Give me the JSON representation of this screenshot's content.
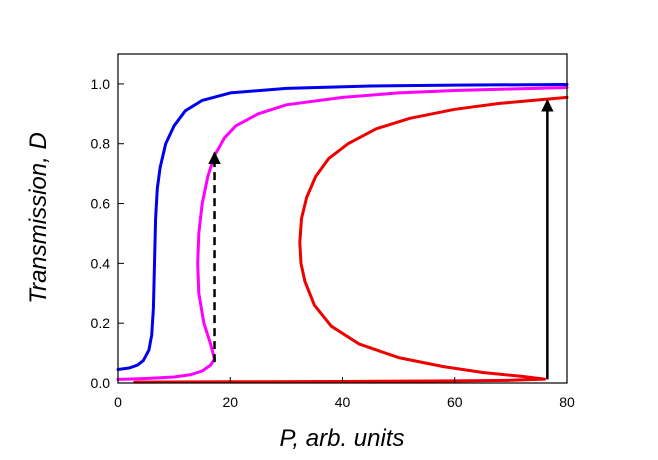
{
  "chart_data": {
    "type": "line",
    "xlabel": "P, arb. units",
    "ylabel": "Transmission, D",
    "xlim": [
      0,
      80
    ],
    "ylim": [
      0,
      1.1
    ],
    "x_ticks": [
      0,
      20,
      40,
      60,
      80
    ],
    "x_tick_labels": [
      "0",
      "20",
      "40",
      "60",
      "80"
    ],
    "y_ticks": [
      0.0,
      0.2,
      0.4,
      0.6,
      0.8,
      1.0
    ],
    "y_tick_labels": [
      "0.0",
      "0.2",
      "0.4",
      "0.6",
      "0.8",
      "1.0"
    ],
    "grid": false,
    "series": [
      {
        "color": "#0000ee",
        "style": "solid",
        "points": [
          [
            0,
            0.045
          ],
          [
            2,
            0.05
          ],
          [
            3.5,
            0.06
          ],
          [
            4.5,
            0.075
          ],
          [
            5.5,
            0.11
          ],
          [
            6,
            0.16
          ],
          [
            6.3,
            0.25
          ],
          [
            6.5,
            0.4
          ],
          [
            6.7,
            0.55
          ],
          [
            7,
            0.65
          ],
          [
            7.5,
            0.72
          ],
          [
            8.5,
            0.8
          ],
          [
            10,
            0.86
          ],
          [
            12,
            0.91
          ],
          [
            15,
            0.945
          ],
          [
            20,
            0.97
          ],
          [
            30,
            0.985
          ],
          [
            45,
            0.993
          ],
          [
            60,
            0.996
          ],
          [
            80,
            0.998
          ]
        ]
      },
      {
        "color": "#ff00ff",
        "style": "solid",
        "points": [
          [
            0,
            0.012
          ],
          [
            5,
            0.015
          ],
          [
            10,
            0.02
          ],
          [
            13,
            0.028
          ],
          [
            15,
            0.04
          ],
          [
            16.5,
            0.06
          ],
          [
            17.2,
            0.08
          ],
          [
            16.5,
            0.13
          ],
          [
            15.3,
            0.2
          ],
          [
            14.4,
            0.3
          ],
          [
            14.2,
            0.4
          ],
          [
            14.4,
            0.5
          ],
          [
            15,
            0.6
          ],
          [
            16,
            0.69
          ],
          [
            17.2,
            0.76
          ],
          [
            19,
            0.82
          ],
          [
            21,
            0.86
          ],
          [
            25,
            0.9
          ],
          [
            30,
            0.93
          ],
          [
            40,
            0.955
          ],
          [
            50,
            0.97
          ],
          [
            60,
            0.978
          ],
          [
            70,
            0.983
          ],
          [
            80,
            0.988
          ]
        ]
      },
      {
        "color": "#ee0000",
        "style": "solid",
        "points": [
          [
            3,
            0.003
          ],
          [
            20,
            0.004
          ],
          [
            40,
            0.005
          ],
          [
            60,
            0.007
          ],
          [
            70,
            0.009
          ],
          [
            76,
            0.013
          ],
          [
            72,
            0.022
          ],
          [
            65,
            0.035
          ],
          [
            58,
            0.055
          ],
          [
            50,
            0.085
          ],
          [
            43,
            0.13
          ],
          [
            38,
            0.19
          ],
          [
            35,
            0.26
          ],
          [
            33.3,
            0.34
          ],
          [
            32.6,
            0.4
          ],
          [
            32.4,
            0.47
          ],
          [
            32.7,
            0.55
          ],
          [
            33.6,
            0.62
          ],
          [
            35.2,
            0.69
          ],
          [
            37.5,
            0.75
          ],
          [
            41,
            0.8
          ],
          [
            46,
            0.85
          ],
          [
            52,
            0.885
          ],
          [
            60,
            0.915
          ],
          [
            68,
            0.935
          ],
          [
            80,
            0.955
          ]
        ]
      }
    ],
    "arrows": [
      {
        "x": 17.2,
        "y_from": 0.07,
        "y_to": 0.77,
        "color": "#000000",
        "style": "dashed"
      },
      {
        "x": 76.5,
        "y_from": 0.012,
        "y_to": 0.945,
        "color": "#000000",
        "style": "solid"
      }
    ]
  }
}
